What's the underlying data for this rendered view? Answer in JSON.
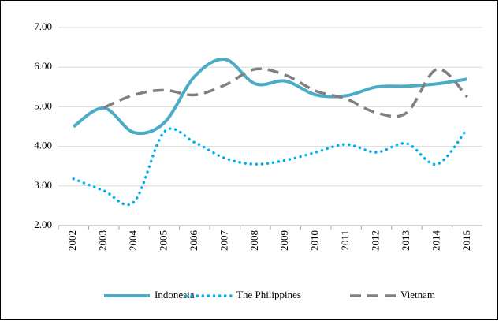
{
  "chart_data": {
    "type": "line",
    "categories": [
      "2002",
      "2003",
      "2004",
      "2005",
      "2006",
      "2007",
      "2008",
      "2009",
      "2010",
      "2011",
      "2012",
      "2013",
      "2014",
      "2015"
    ],
    "series": [
      {
        "name": "Indonesia",
        "color": "#4bacc6",
        "style": "solid",
        "values": [
          4.5,
          4.97,
          4.35,
          4.6,
          5.77,
          6.2,
          5.58,
          5.65,
          5.3,
          5.28,
          5.5,
          5.52,
          5.58,
          5.7
        ]
      },
      {
        "name": "The Philippines",
        "color": "#00b0f0",
        "style": "dotted",
        "values": [
          3.18,
          2.88,
          2.6,
          4.37,
          4.1,
          3.7,
          3.55,
          3.65,
          3.85,
          4.05,
          3.85,
          4.07,
          3.55,
          4.45
        ]
      },
      {
        "name": "Vietnam",
        "color": "#808080",
        "style": "dashed",
        "values": [
          null,
          4.98,
          5.3,
          5.42,
          5.3,
          5.55,
          5.95,
          5.8,
          5.4,
          5.2,
          4.85,
          4.85,
          5.95,
          5.25
        ]
      }
    ],
    "ylim": [
      2,
      7
    ],
    "yticks": [
      {
        "value": 2,
        "label": "2.00"
      },
      {
        "value": 3,
        "label": "3.00"
      },
      {
        "value": 4,
        "label": "4.00"
      },
      {
        "value": 5,
        "label": "5.00"
      },
      {
        "value": 6,
        "label": "6.00"
      },
      {
        "value": 7,
        "label": "7.00"
      }
    ],
    "grid": true,
    "smooth": true,
    "legend": "bottom"
  }
}
